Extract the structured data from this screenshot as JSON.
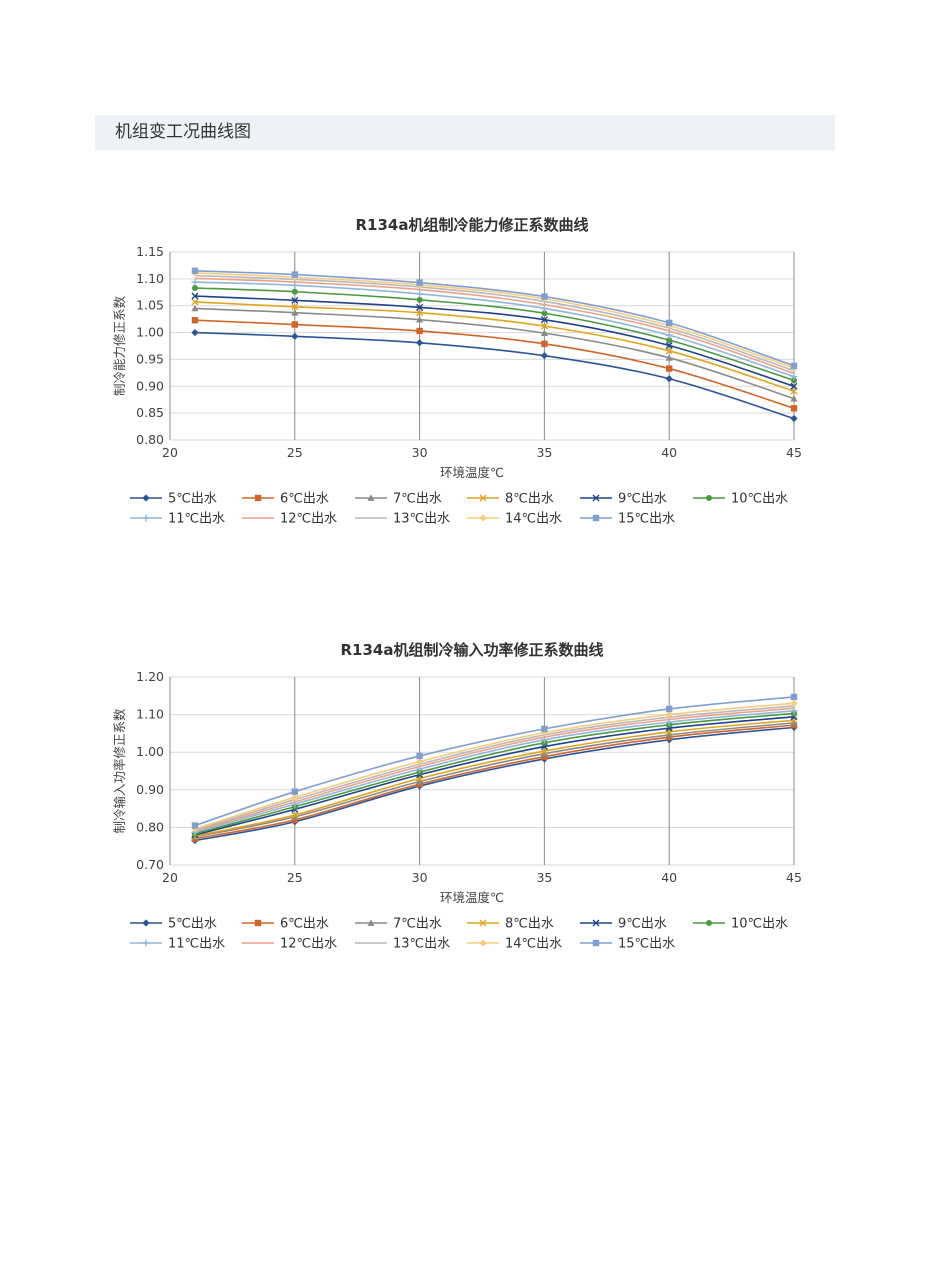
{
  "section": {
    "title": "机组变工况曲线图"
  },
  "series_colors": [
    "#2c5597",
    "#d0652a",
    "#8a8a8a",
    "#e0a51d",
    "#1f4288",
    "#4b9a3f",
    "#90b6dc",
    "#eda187",
    "#b9b9b9",
    "#f6cd7e",
    "#7f9fd2"
  ],
  "series_markers": [
    "diamond",
    "square",
    "triangle",
    "x",
    "x",
    "circle",
    "plus",
    "none",
    "none",
    "diamond",
    "square"
  ],
  "chart_data": [
    {
      "type": "line",
      "title": "R134a机组制冷能力修正系数曲线",
      "xlabel": "环境温度℃",
      "ylabel": "制冷能力修正系数",
      "xlim": [
        20,
        45
      ],
      "ylim": [
        0.8,
        1.15
      ],
      "xticks": [
        "20",
        "25",
        "30",
        "35",
        "40",
        "45"
      ],
      "yticks": [
        "0.80",
        "0.85",
        "0.90",
        "0.95",
        "1.00",
        "1.05",
        "1.10",
        "1.15"
      ],
      "x": [
        21,
        25,
        30,
        35,
        40,
        45
      ],
      "legend_position": "bottom",
      "series": [
        {
          "name": "5℃出水",
          "values": [
            1.0,
            0.993,
            0.981,
            0.957,
            0.914,
            0.84
          ]
        },
        {
          "name": "6℃出水",
          "values": [
            1.023,
            1.015,
            1.003,
            0.979,
            0.933,
            0.859
          ]
        },
        {
          "name": "7℃出水",
          "values": [
            1.045,
            1.037,
            1.024,
            0.999,
            0.953,
            0.877
          ]
        },
        {
          "name": "8℃出水",
          "values": [
            1.057,
            1.048,
            1.037,
            1.012,
            0.966,
            0.891
          ]
        },
        {
          "name": "9℃出水",
          "values": [
            1.068,
            1.06,
            1.047,
            1.024,
            0.976,
            0.9
          ]
        },
        {
          "name": "10℃出水",
          "values": [
            1.083,
            1.076,
            1.061,
            1.036,
            0.986,
            0.911
          ]
        },
        {
          "name": "11℃出水",
          "values": [
            1.094,
            1.088,
            1.072,
            1.045,
            0.995,
            0.918
          ]
        },
        {
          "name": "12℃出水",
          "values": [
            1.101,
            1.094,
            1.08,
            1.052,
            1.003,
            0.924
          ]
        },
        {
          "name": "13℃出水",
          "values": [
            1.106,
            1.099,
            1.085,
            1.058,
            1.008,
            0.929
          ]
        },
        {
          "name": "14℃出水",
          "values": [
            1.111,
            1.103,
            1.089,
            1.063,
            1.013,
            0.934
          ]
        },
        {
          "name": "15℃出水",
          "values": [
            1.115,
            1.108,
            1.093,
            1.067,
            1.018,
            0.938
          ]
        }
      ]
    },
    {
      "type": "line",
      "title": "R134a机组制冷输入功率修正系数曲线",
      "xlabel": "环境温度℃",
      "ylabel": "制冷输入功率修正系数",
      "xlim": [
        20,
        45
      ],
      "ylim": [
        0.7,
        1.2
      ],
      "xticks": [
        "20",
        "25",
        "30",
        "35",
        "40",
        "45"
      ],
      "yticks": [
        "0.70",
        "0.80",
        "0.90",
        "1.00",
        "1.10",
        "1.20"
      ],
      "x": [
        21,
        25,
        30,
        35,
        40,
        45
      ],
      "legend_position": "bottom",
      "series": [
        {
          "name": "5℃出水",
          "values": [
            0.765,
            0.815,
            0.91,
            0.982,
            1.033,
            1.066
          ]
        },
        {
          "name": "6℃出水",
          "values": [
            0.77,
            0.82,
            0.915,
            0.988,
            1.04,
            1.072
          ]
        },
        {
          "name": "7℃出水",
          "values": [
            0.775,
            0.828,
            0.922,
            0.996,
            1.046,
            1.078
          ]
        },
        {
          "name": "8℃出水",
          "values": [
            0.777,
            0.833,
            0.93,
            1.003,
            1.054,
            1.085
          ]
        },
        {
          "name": "9℃出水",
          "values": [
            0.78,
            0.848,
            0.94,
            1.015,
            1.064,
            1.094
          ]
        },
        {
          "name": "10℃出水",
          "values": [
            0.783,
            0.855,
            0.947,
            1.025,
            1.073,
            1.103
          ]
        },
        {
          "name": "11℃出水",
          "values": [
            0.787,
            0.862,
            0.955,
            1.033,
            1.08,
            1.11
          ]
        },
        {
          "name": "12℃出水",
          "values": [
            0.79,
            0.868,
            0.962,
            1.04,
            1.087,
            1.117
          ]
        },
        {
          "name": "13℃出水",
          "values": [
            0.793,
            0.874,
            0.968,
            1.046,
            1.093,
            1.123
          ]
        },
        {
          "name": "14℃出水",
          "values": [
            0.796,
            0.88,
            0.975,
            1.052,
            1.1,
            1.13
          ]
        },
        {
          "name": "15℃出水",
          "values": [
            0.805,
            0.895,
            0.99,
            1.062,
            1.115,
            1.147
          ]
        }
      ]
    }
  ]
}
